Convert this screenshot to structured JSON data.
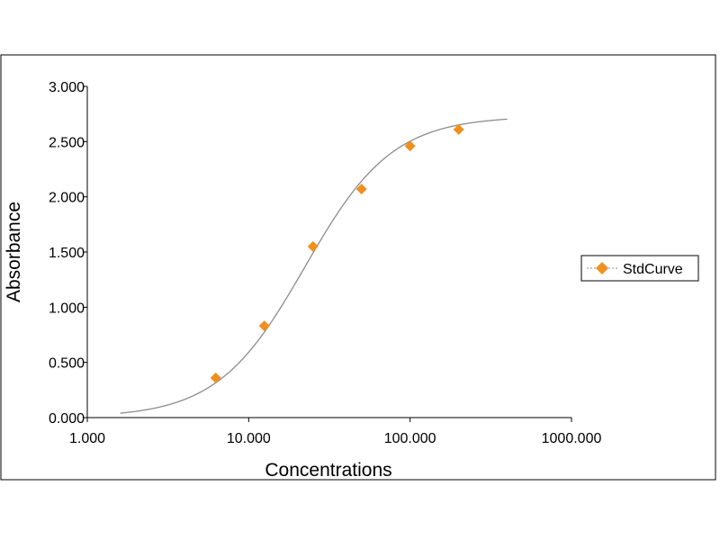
{
  "chart_data": {
    "type": "scatter",
    "xscale": "log",
    "xlabel": "Concentrations",
    "ylabel": "Absorbance",
    "xlim": [
      1,
      1000
    ],
    "ylim": [
      0,
      3
    ],
    "x_ticks": [
      1,
      10,
      100,
      1000
    ],
    "x_tick_labels": [
      "1.000",
      "10.000",
      "100.000",
      "1000.000"
    ],
    "y_ticks": [
      0,
      0.5,
      1,
      1.5,
      2,
      2.5,
      3
    ],
    "y_tick_labels": [
      "0.000",
      "0.500",
      "1.000",
      "1.500",
      "2.000",
      "2.500",
      "3.000"
    ],
    "grid": false,
    "legend_position": "right",
    "series": [
      {
        "name": "StdCurve",
        "color": "#f0901e",
        "marker": "diamond",
        "x": [
          6.25,
          12.5,
          25,
          50,
          100,
          200
        ],
        "y": [
          0.36,
          0.83,
          1.55,
          2.07,
          2.46,
          2.61
        ]
      }
    ],
    "fit_curve": {
      "model": "four-parameter logistic",
      "color": "#8c8c8c",
      "x_range": [
        1.6,
        400
      ],
      "bottom": 0,
      "top": 2.73,
      "ec50": 22.3,
      "hill": 1.6
    }
  }
}
